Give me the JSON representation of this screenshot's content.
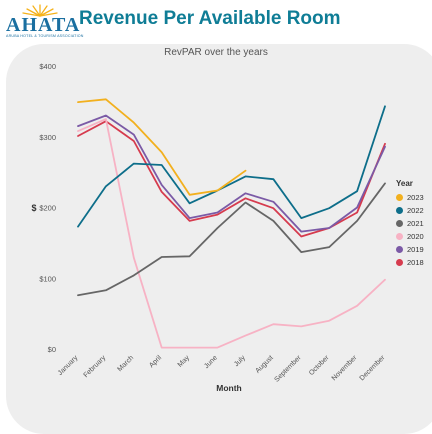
{
  "header": {
    "logo_text": "AHATA",
    "logo_subtext": "ARUBA HOTEL & TOURISM ASSOCIATION",
    "title": "Revenue Per Available Room"
  },
  "colors": {
    "brand_blue": "#1a6fa0",
    "title_teal": "#0f7d96",
    "sun_yellow": "#f5b21a"
  },
  "chart_data": {
    "type": "line",
    "title": "RevPAR over the years",
    "xlabel": "Month",
    "ylabel": "$",
    "ylim": [
      0,
      400
    ],
    "yticks": [
      0,
      100,
      200,
      300,
      400
    ],
    "ytick_labels": [
      "$0",
      "$100",
      "$200",
      "$300",
      "$400"
    ],
    "grid": false,
    "legend_position": "right",
    "legend_title": "Year",
    "categories": [
      "January",
      "February",
      "March",
      "April",
      "May",
      "June",
      "July",
      "August",
      "September",
      "October",
      "November",
      "December"
    ],
    "series": [
      {
        "name": "2023",
        "color": "#f2b01e",
        "values": [
          349,
          353,
          320,
          278,
          218,
          224,
          252,
          null,
          null,
          null,
          null,
          null
        ]
      },
      {
        "name": "2022",
        "color": "#0d6e8a",
        "values": [
          173,
          230,
          262,
          260,
          206,
          224,
          244,
          240,
          185,
          199,
          223,
          343
        ]
      },
      {
        "name": "2021",
        "color": "#666666",
        "values": [
          76,
          83,
          104,
          130,
          131,
          171,
          207,
          181,
          137,
          144,
          181,
          234
        ]
      },
      {
        "name": "2020",
        "color": "#f7b2c4",
        "values": [
          308,
          325,
          129,
          2,
          2,
          2,
          19,
          35,
          32,
          40,
          61,
          98
        ]
      },
      {
        "name": "2019",
        "color": "#7b5aa6",
        "values": [
          315,
          330,
          303,
          232,
          185,
          193,
          220,
          208,
          166,
          171,
          200,
          286
        ]
      },
      {
        "name": "2018",
        "color": "#d63b4e",
        "values": [
          301,
          322,
          294,
          222,
          181,
          190,
          213,
          199,
          159,
          171,
          193,
          290
        ]
      }
    ]
  }
}
